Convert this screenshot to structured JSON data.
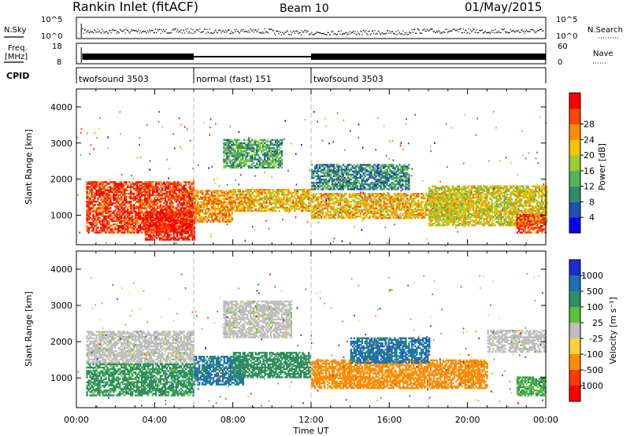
{
  "header": {
    "station": "Rankin Inlet (fitACF)",
    "beam": "Beam 10",
    "date": "01/May/2015"
  },
  "nsky_panel": {
    "left_label": "N.Sky",
    "right_label": "N.Search",
    "ticks_left": [
      "10^5",
      "10^0"
    ],
    "ticks_right": [
      "10^5",
      "10^0"
    ]
  },
  "freq_panel": {
    "left_label_1": "Freq.",
    "left_label_2": "[MHz]",
    "right_label": "Nave",
    "ticks_left": [
      "18",
      "8"
    ],
    "ticks_right": [
      "60",
      "0"
    ]
  },
  "cpid_panel": {
    "label": "CPID",
    "segments": [
      {
        "label": "twofsound 3503",
        "start": 0,
        "end": 6
      },
      {
        "label": "normal (fast) 151",
        "start": 6,
        "end": 12
      },
      {
        "label": "twofsound 3503",
        "start": 12,
        "end": 24
      }
    ]
  },
  "chart_data": [
    {
      "type": "heatmap",
      "title": "Power",
      "ylabel": "Slant Range [km]",
      "xlim": [
        0,
        24
      ],
      "ylim": [
        180,
        4500
      ],
      "yticks": [
        "1000",
        "2000",
        "3000",
        "4000"
      ],
      "colorbar": {
        "label": "Power [dB]",
        "ticks": [
          "4",
          "8",
          "12",
          "16",
          "20",
          "24",
          "28"
        ],
        "colors": [
          "#0000ff",
          "#1f4fb2",
          "#2e8b6e",
          "#55b35a",
          "#9acd32",
          "#f2c400",
          "#ff8c00",
          "#ff4500",
          "#ff0000"
        ]
      },
      "regions": [
        {
          "t0": 0.5,
          "t1": 6,
          "r0": 500,
          "r1": 1900,
          "value": 26
        },
        {
          "t0": 3.5,
          "t1": 6,
          "r0": 300,
          "r1": 1100,
          "value": 28
        },
        {
          "t0": 6,
          "t1": 8,
          "r0": 800,
          "r1": 1700,
          "value": 22
        },
        {
          "t0": 7.5,
          "t1": 10.5,
          "r0": 2300,
          "r1": 3100,
          "value": 12
        },
        {
          "t0": 8,
          "t1": 12,
          "r0": 1100,
          "r1": 1700,
          "value": 20
        },
        {
          "t0": 12,
          "t1": 20,
          "r0": 900,
          "r1": 1600,
          "value": 20
        },
        {
          "t0": 12,
          "t1": 17,
          "r0": 1700,
          "r1": 2400,
          "value": 10
        },
        {
          "t0": 18,
          "t1": 24,
          "r0": 700,
          "r1": 1800,
          "value": 18
        },
        {
          "t0": 22.5,
          "t1": 24,
          "r0": 500,
          "r1": 1000,
          "value": 26
        }
      ]
    },
    {
      "type": "heatmap",
      "title": "Velocity",
      "ylabel": "Slant Range [km]",
      "xlabel": "Time UT",
      "xlim": [
        0,
        24
      ],
      "ylim": [
        180,
        4500
      ],
      "xticks": [
        "00:00",
        "04:00",
        "08:00",
        "12:00",
        "16:00",
        "20:00",
        "00:00"
      ],
      "yticks": [
        "1000",
        "2000",
        "3000",
        "4000"
      ],
      "colorbar": {
        "label": "Velocity [m s⁻¹]",
        "ticks": [
          "1000",
          "500",
          "100",
          "25",
          "-25",
          "-100",
          "-500",
          "-1000"
        ],
        "colors": [
          "#1a2fd1",
          "#1e6fb3",
          "#2f8f5f",
          "#56c436",
          "#bebebe",
          "#ffd23c",
          "#ff8c00",
          "#ff3b00",
          "#ff0000"
        ]
      },
      "regions": [
        {
          "t0": 0.5,
          "t1": 6,
          "r0": 1400,
          "r1": 2300,
          "value": 0
        },
        {
          "t0": 0.5,
          "t1": 6,
          "r0": 500,
          "r1": 1400,
          "value": 150
        },
        {
          "t0": 6,
          "t1": 8.5,
          "r0": 800,
          "r1": 1600,
          "value": 600
        },
        {
          "t0": 7.5,
          "t1": 11,
          "r0": 2100,
          "r1": 3100,
          "value": 0
        },
        {
          "t0": 8,
          "t1": 12,
          "r0": 1000,
          "r1": 1700,
          "value": 300
        },
        {
          "t0": 12,
          "t1": 21,
          "r0": 700,
          "r1": 1500,
          "value": -300
        },
        {
          "t0": 14,
          "t1": 18,
          "r0": 1400,
          "r1": 2100,
          "value": 700
        },
        {
          "t0": 21,
          "t1": 24,
          "r0": 1700,
          "r1": 2300,
          "value": 0
        },
        {
          "t0": 22.5,
          "t1": 24,
          "r0": 500,
          "r1": 1000,
          "value": 100
        }
      ]
    }
  ]
}
